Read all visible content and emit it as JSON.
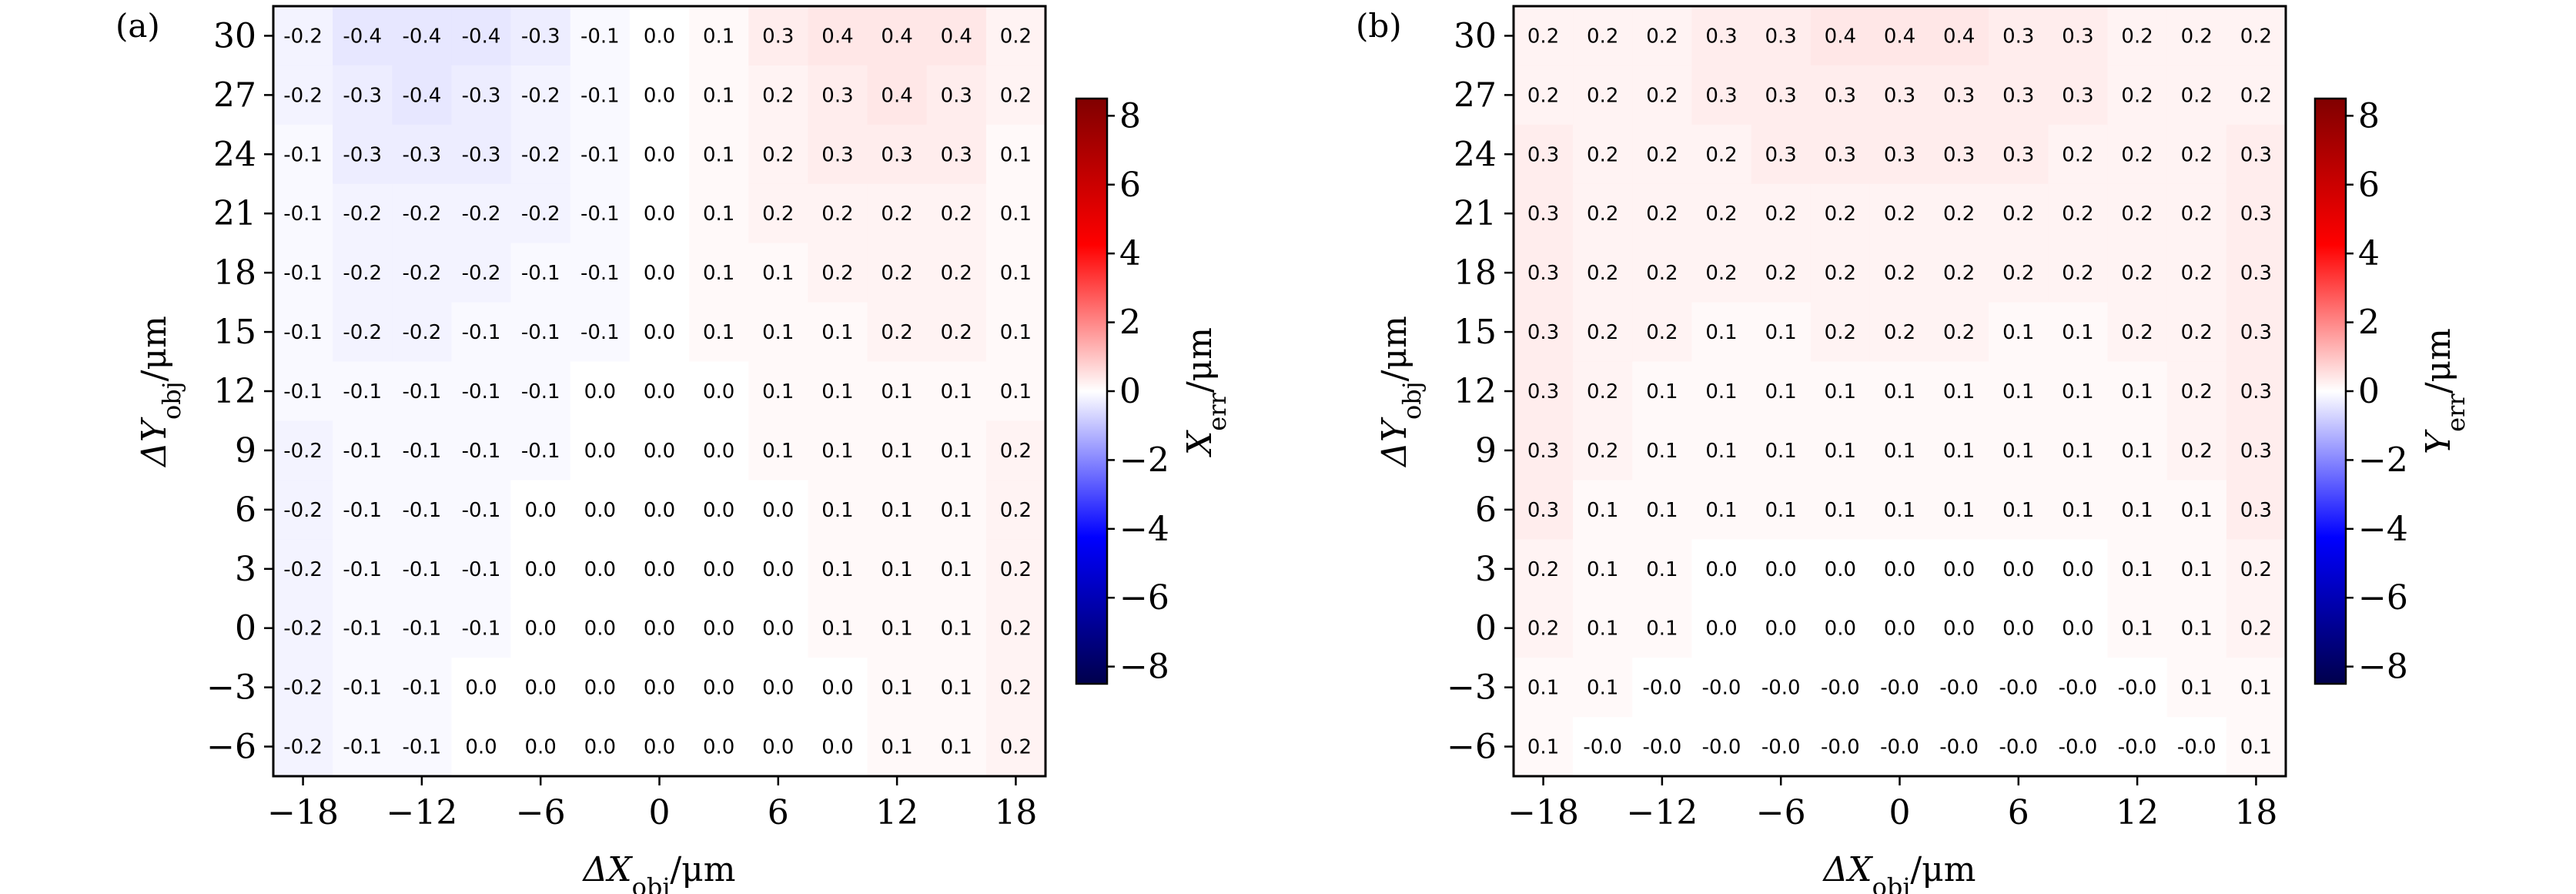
{
  "chart_data": [
    {
      "type": "heatmap",
      "panel_label": "(a)",
      "xlabel": "ΔX_obj/μm",
      "ylabel": "ΔY_obj/μm",
      "colorbar_label": "X_err/μm",
      "colorbar_range": [
        -8.5,
        8.5
      ],
      "colorbar_ticks": [
        -8,
        -6,
        -4,
        -2,
        0,
        2,
        4,
        6,
        8
      ],
      "x": [
        -18,
        -15,
        -12,
        -9,
        -6,
        -3,
        0,
        3,
        6,
        9,
        12,
        15,
        18
      ],
      "y": [
        30,
        27,
        24,
        21,
        18,
        15,
        12,
        9,
        6,
        3,
        0,
        -3,
        -6
      ],
      "xticks": [
        -18,
        -12,
        -6,
        0,
        6,
        12,
        18
      ],
      "yticks": [
        30,
        27,
        24,
        21,
        18,
        15,
        12,
        9,
        6,
        3,
        0,
        -3,
        -6
      ],
      "values": [
        [
          "-0.2",
          "-0.4",
          "-0.4",
          "-0.4",
          "-0.3",
          "-0.1",
          "0.0",
          "0.1",
          "0.3",
          "0.4",
          "0.4",
          "0.4",
          "0.2"
        ],
        [
          "-0.2",
          "-0.3",
          "-0.4",
          "-0.3",
          "-0.2",
          "-0.1",
          "0.0",
          "0.1",
          "0.2",
          "0.3",
          "0.4",
          "0.3",
          "0.2"
        ],
        [
          "-0.1",
          "-0.3",
          "-0.3",
          "-0.3",
          "-0.2",
          "-0.1",
          "0.0",
          "0.1",
          "0.2",
          "0.3",
          "0.3",
          "0.3",
          "0.1"
        ],
        [
          "-0.1",
          "-0.2",
          "-0.2",
          "-0.2",
          "-0.2",
          "-0.1",
          "0.0",
          "0.1",
          "0.2",
          "0.2",
          "0.2",
          "0.2",
          "0.1"
        ],
        [
          "-0.1",
          "-0.2",
          "-0.2",
          "-0.2",
          "-0.1",
          "-0.1",
          "0.0",
          "0.1",
          "0.1",
          "0.2",
          "0.2",
          "0.2",
          "0.1"
        ],
        [
          "-0.1",
          "-0.2",
          "-0.2",
          "-0.1",
          "-0.1",
          "-0.1",
          "0.0",
          "0.1",
          "0.1",
          "0.1",
          "0.2",
          "0.2",
          "0.1"
        ],
        [
          "-0.1",
          "-0.1",
          "-0.1",
          "-0.1",
          "-0.1",
          "0.0",
          "0.0",
          "0.0",
          "0.1",
          "0.1",
          "0.1",
          "0.1",
          "0.1"
        ],
        [
          "-0.2",
          "-0.1",
          "-0.1",
          "-0.1",
          "-0.1",
          "0.0",
          "0.0",
          "0.0",
          "0.1",
          "0.1",
          "0.1",
          "0.1",
          "0.2"
        ],
        [
          "-0.2",
          "-0.1",
          "-0.1",
          "-0.1",
          "0.0",
          "0.0",
          "0.0",
          "0.0",
          "0.0",
          "0.1",
          "0.1",
          "0.1",
          "0.2"
        ],
        [
          "-0.2",
          "-0.1",
          "-0.1",
          "-0.1",
          "0.0",
          "0.0",
          "0.0",
          "0.0",
          "0.0",
          "0.1",
          "0.1",
          "0.1",
          "0.2"
        ],
        [
          "-0.2",
          "-0.1",
          "-0.1",
          "-0.1",
          "0.0",
          "0.0",
          "0.0",
          "0.0",
          "0.0",
          "0.1",
          "0.1",
          "0.1",
          "0.2"
        ],
        [
          "-0.2",
          "-0.1",
          "-0.1",
          "0.0",
          "0.0",
          "0.0",
          "0.0",
          "0.0",
          "0.0",
          "0.0",
          "0.1",
          "0.1",
          "0.2"
        ],
        [
          "-0.2",
          "-0.1",
          "-0.1",
          "0.0",
          "0.0",
          "0.0",
          "0.0",
          "0.0",
          "0.0",
          "0.0",
          "0.1",
          "0.1",
          "0.2"
        ]
      ],
      "colormap": "seismic",
      "grid": false
    },
    {
      "type": "heatmap",
      "panel_label": "(b)",
      "xlabel": "ΔX_obj/μm",
      "ylabel": "ΔY_obj/μm",
      "colorbar_label": "Y_err/μm",
      "colorbar_range": [
        -8.5,
        8.5
      ],
      "colorbar_ticks": [
        -8,
        -6,
        -4,
        -2,
        0,
        2,
        4,
        6,
        8
      ],
      "x": [
        -18,
        -15,
        -12,
        -9,
        -6,
        -3,
        0,
        3,
        6,
        9,
        12,
        15,
        18
      ],
      "y": [
        30,
        27,
        24,
        21,
        18,
        15,
        12,
        9,
        6,
        3,
        0,
        -3,
        -6
      ],
      "xticks": [
        -18,
        -12,
        -6,
        0,
        6,
        12,
        18
      ],
      "yticks": [
        30,
        27,
        24,
        21,
        18,
        15,
        12,
        9,
        6,
        3,
        0,
        -3,
        -6
      ],
      "values": [
        [
          "0.2",
          "0.2",
          "0.2",
          "0.3",
          "0.3",
          "0.4",
          "0.4",
          "0.4",
          "0.3",
          "0.3",
          "0.2",
          "0.2",
          "0.2"
        ],
        [
          "0.2",
          "0.2",
          "0.2",
          "0.3",
          "0.3",
          "0.3",
          "0.3",
          "0.3",
          "0.3",
          "0.3",
          "0.2",
          "0.2",
          "0.2"
        ],
        [
          "0.3",
          "0.2",
          "0.2",
          "0.2",
          "0.3",
          "0.3",
          "0.3",
          "0.3",
          "0.3",
          "0.2",
          "0.2",
          "0.2",
          "0.3"
        ],
        [
          "0.3",
          "0.2",
          "0.2",
          "0.2",
          "0.2",
          "0.2",
          "0.2",
          "0.2",
          "0.2",
          "0.2",
          "0.2",
          "0.2",
          "0.3"
        ],
        [
          "0.3",
          "0.2",
          "0.2",
          "0.2",
          "0.2",
          "0.2",
          "0.2",
          "0.2",
          "0.2",
          "0.2",
          "0.2",
          "0.2",
          "0.3"
        ],
        [
          "0.3",
          "0.2",
          "0.2",
          "0.1",
          "0.1",
          "0.2",
          "0.2",
          "0.2",
          "0.1",
          "0.1",
          "0.2",
          "0.2",
          "0.3"
        ],
        [
          "0.3",
          "0.2",
          "0.1",
          "0.1",
          "0.1",
          "0.1",
          "0.1",
          "0.1",
          "0.1",
          "0.1",
          "0.1",
          "0.2",
          "0.3"
        ],
        [
          "0.3",
          "0.2",
          "0.1",
          "0.1",
          "0.1",
          "0.1",
          "0.1",
          "0.1",
          "0.1",
          "0.1",
          "0.1",
          "0.2",
          "0.3"
        ],
        [
          "0.3",
          "0.1",
          "0.1",
          "0.1",
          "0.1",
          "0.1",
          "0.1",
          "0.1",
          "0.1",
          "0.1",
          "0.1",
          "0.1",
          "0.3"
        ],
        [
          "0.2",
          "0.1",
          "0.1",
          "0.0",
          "0.0",
          "0.0",
          "0.0",
          "0.0",
          "0.0",
          "0.0",
          "0.1",
          "0.1",
          "0.2"
        ],
        [
          "0.2",
          "0.1",
          "0.1",
          "0.0",
          "0.0",
          "0.0",
          "0.0",
          "0.0",
          "0.0",
          "0.0",
          "0.1",
          "0.1",
          "0.2"
        ],
        [
          "0.1",
          "0.1",
          "-0.0",
          "-0.0",
          "-0.0",
          "-0.0",
          "-0.0",
          "-0.0",
          "-0.0",
          "-0.0",
          "-0.0",
          "0.1",
          "0.1"
        ],
        [
          "0.1",
          "-0.0",
          "-0.0",
          "-0.0",
          "-0.0",
          "-0.0",
          "-0.0",
          "-0.0",
          "-0.0",
          "-0.0",
          "-0.0",
          "-0.0",
          "0.1"
        ]
      ],
      "colormap": "seismic",
      "grid": false
    }
  ]
}
